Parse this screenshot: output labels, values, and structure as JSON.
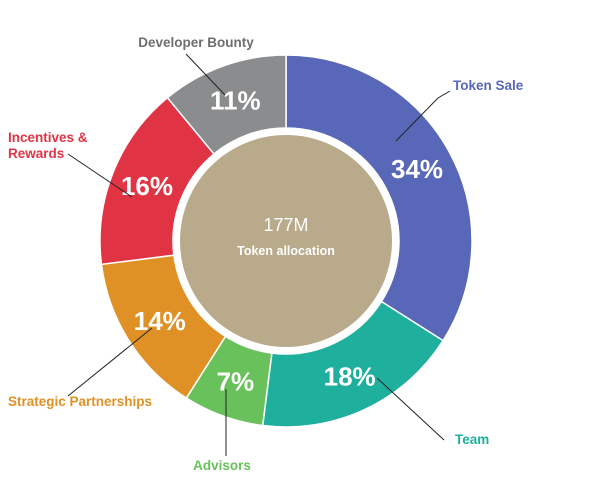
{
  "chart_data": {
    "type": "pie",
    "style": "donut",
    "center": {
      "value": "177M",
      "label": "Token allocation"
    },
    "slices": [
      {
        "name": "Token Sale",
        "label": "34%",
        "value": 34,
        "color": "#5867b7",
        "label_lines": [
          "Token Sale"
        ]
      },
      {
        "name": "Team",
        "label": "18%",
        "value": 18,
        "color": "#1fb09d",
        "label_lines": [
          "Team"
        ]
      },
      {
        "name": "Advisors",
        "label": "7%",
        "value": 7,
        "color": "#68c15a",
        "label_lines": [
          "Advisors"
        ]
      },
      {
        "name": "Strategic Partnerships",
        "label": "14%",
        "value": 14,
        "color": "#e09126",
        "label_lines": [
          "Strategic Partnerships"
        ]
      },
      {
        "name": "Incentives & Rewards",
        "label": "16%",
        "value": 16,
        "color": "#e03445",
        "label_lines": [
          "Incentives &",
          "Rewards"
        ]
      },
      {
        "name": "Developer Bounty",
        "label": "11%",
        "value": 11,
        "color": "#8b8c8e",
        "label_lines": [
          "Developer Bounty"
        ]
      }
    ],
    "center_color": "#b8aa8b",
    "separator_color": "#ffffff",
    "developer_bounty_label_color": "#6d6e70"
  }
}
